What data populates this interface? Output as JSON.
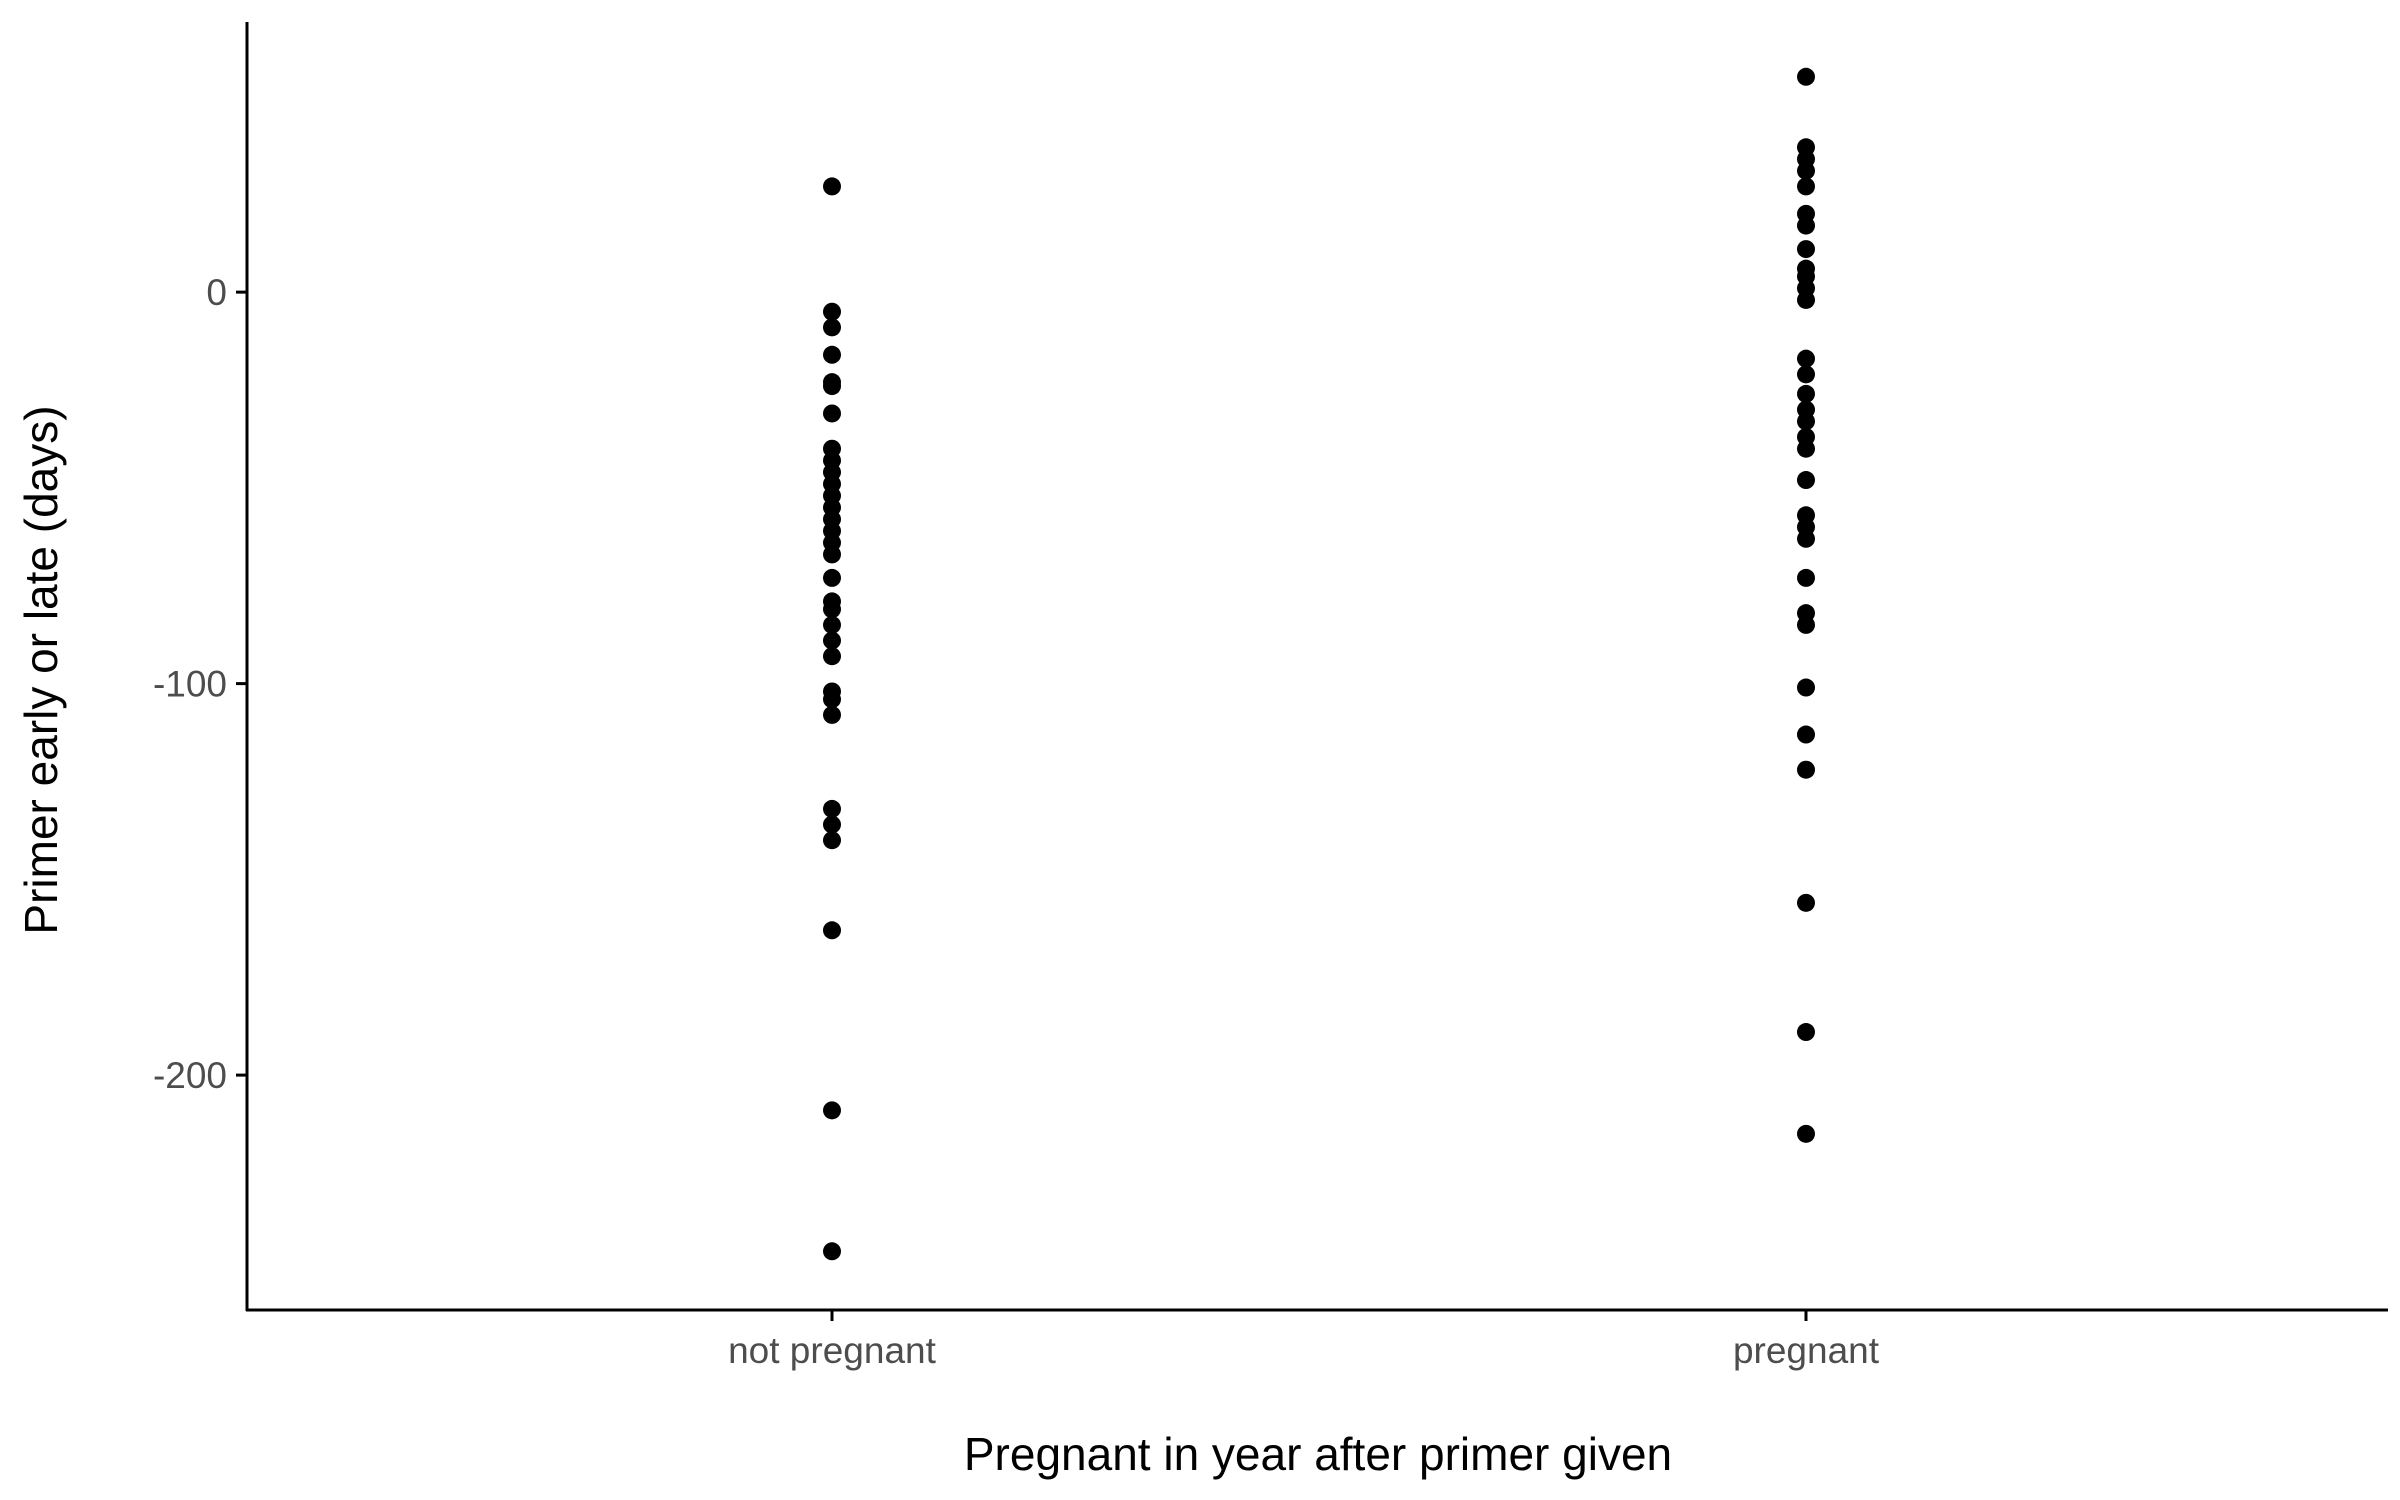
{
  "chart_data": {
    "type": "scatter",
    "title": "",
    "xlabel": "Pregnant in year after primer given",
    "ylabel": "Primer early or late (days)",
    "categories": [
      "not pregnant",
      "pregnant"
    ],
    "ylim": [
      -260,
      69
    ],
    "yticks": [
      0,
      -100,
      -200
    ],
    "grid": false,
    "legend": "none",
    "colors": {
      "points": "#000000",
      "axis": "#000000",
      "tick_label": "#4d4d4d",
      "title": "#000000"
    },
    "series": [
      {
        "category": "not pregnant",
        "values": [
          27,
          -5,
          -9,
          -16,
          -23,
          -24,
          -31,
          -40,
          -43,
          -46,
          -49,
          -52,
          -55,
          -58,
          -61,
          -64,
          -67,
          -73,
          -79,
          -81,
          -85,
          -89,
          -93,
          -102,
          -104,
          -108,
          -132,
          -136,
          -140,
          -163,
          -209,
          -245
        ]
      },
      {
        "category": "pregnant",
        "values": [
          55,
          37,
          34,
          31,
          27,
          20,
          17,
          11,
          6,
          4,
          1,
          -2,
          -17,
          -21,
          -26,
          -30,
          -33,
          -37,
          -40,
          -48,
          -57,
          -60,
          -63,
          -73,
          -82,
          -85,
          -101,
          -113,
          -122,
          -156,
          -189,
          -215
        ]
      }
    ]
  }
}
